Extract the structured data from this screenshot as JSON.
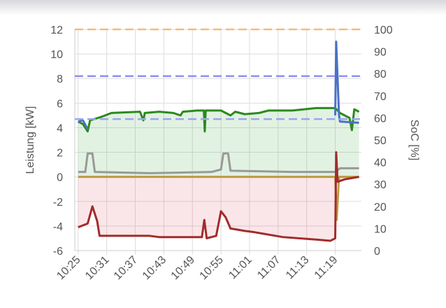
{
  "chart_data": {
    "type": "line",
    "y_label": "Leistung [kW]",
    "y2_label": "SoC [%]",
    "xlim": [
      624.3,
      684.5
    ],
    "xticks": [
      {
        "value": 625,
        "label": "10:25"
      },
      {
        "value": 631,
        "label": "10:31"
      },
      {
        "value": 637,
        "label": "10:37"
      },
      {
        "value": 643,
        "label": "10:43"
      },
      {
        "value": 649,
        "label": "10:49"
      },
      {
        "value": 655,
        "label": "10:55"
      },
      {
        "value": 661,
        "label": "11:01"
      },
      {
        "value": 667,
        "label": "11:07"
      },
      {
        "value": 673,
        "label": "11:13"
      },
      {
        "value": 679,
        "label": "11:19"
      }
    ],
    "ylim": [
      -6,
      12
    ],
    "yticks": [
      -6,
      -4,
      -2,
      0,
      2,
      4,
      6,
      8,
      10,
      12
    ],
    "y2lim": [
      0,
      100
    ],
    "y2ticks": [
      0,
      10,
      20,
      30,
      40,
      50,
      60,
      70,
      80,
      90,
      100
    ],
    "grid": true,
    "reference_lines": [
      {
        "value": 12,
        "color": "#f5b97f"
      },
      {
        "value": 8.2,
        "color": "#8f8ff0"
      },
      {
        "value": 4.7,
        "color": "#9ea4ee"
      }
    ],
    "series": [
      {
        "color": "#2b8a1c",
        "fill": "rgba(60,170,60,0.15)",
        "x": [
          625,
          626,
          627,
          627.5,
          630,
          632,
          638,
          638.7,
          639,
          642,
          645,
          646.5,
          647,
          650,
          651.4,
          651.6,
          651.8,
          655,
          657,
          658,
          660,
          663,
          665,
          670,
          675,
          679,
          680,
          682,
          682.5,
          683,
          684
        ],
        "values": [
          4.5,
          4.3,
          3.7,
          4.6,
          4.9,
          5.2,
          5.3,
          4.6,
          5.2,
          5.3,
          5.2,
          5.0,
          5.3,
          5.4,
          5.4,
          3.7,
          5.4,
          5.4,
          5.0,
          5.3,
          5.1,
          5.2,
          5.4,
          5.4,
          5.6,
          5.6,
          5.2,
          4.8,
          3.8,
          5.5,
          5.3
        ]
      },
      {
        "color": "#4a72c4",
        "x": [
          625,
          626,
          627,
          627.5,
          679,
          679.2,
          679.8,
          680,
          684
        ],
        "values": [
          4.5,
          4.6,
          3.9,
          null,
          5.0,
          11.0,
          5.0,
          4.5,
          4.4
        ]
      },
      {
        "color": "#999999",
        "x": [
          625,
          626.5,
          627,
          628,
          628.5,
          640,
          653,
          655,
          655.5,
          656.5,
          657,
          670,
          679,
          680,
          684
        ],
        "values": [
          0.4,
          0.4,
          1.9,
          1.9,
          0.4,
          0.3,
          0.4,
          0.6,
          1.9,
          1.9,
          0.5,
          0.4,
          0.4,
          0.7,
          0.7
        ]
      },
      {
        "color": "#b8a040",
        "x": [
          625,
          679,
          679.3,
          679.8,
          684
        ],
        "values": [
          0,
          0,
          -3.5,
          0,
          0
        ]
      },
      {
        "color": "#a32b2b",
        "fill": "rgba(220,60,80,0.13)",
        "x": [
          625,
          627,
          628,
          629,
          629.5,
          640,
          642,
          651,
          651.5,
          652,
          654,
          655,
          656,
          657,
          660,
          662,
          668,
          675,
          678,
          679,
          679.2,
          679.5,
          681,
          684
        ],
        "values": [
          -4.1,
          -3.8,
          -2.4,
          -3.6,
          -4.8,
          -4.8,
          -4.9,
          -4.9,
          -3.5,
          -5.0,
          -4.8,
          -2.8,
          -3.3,
          -4.2,
          -4.4,
          -4.5,
          -4.9,
          -5.1,
          -5.2,
          -5.0,
          2.0,
          -0.4,
          -0.2,
          0.0
        ]
      }
    ]
  }
}
